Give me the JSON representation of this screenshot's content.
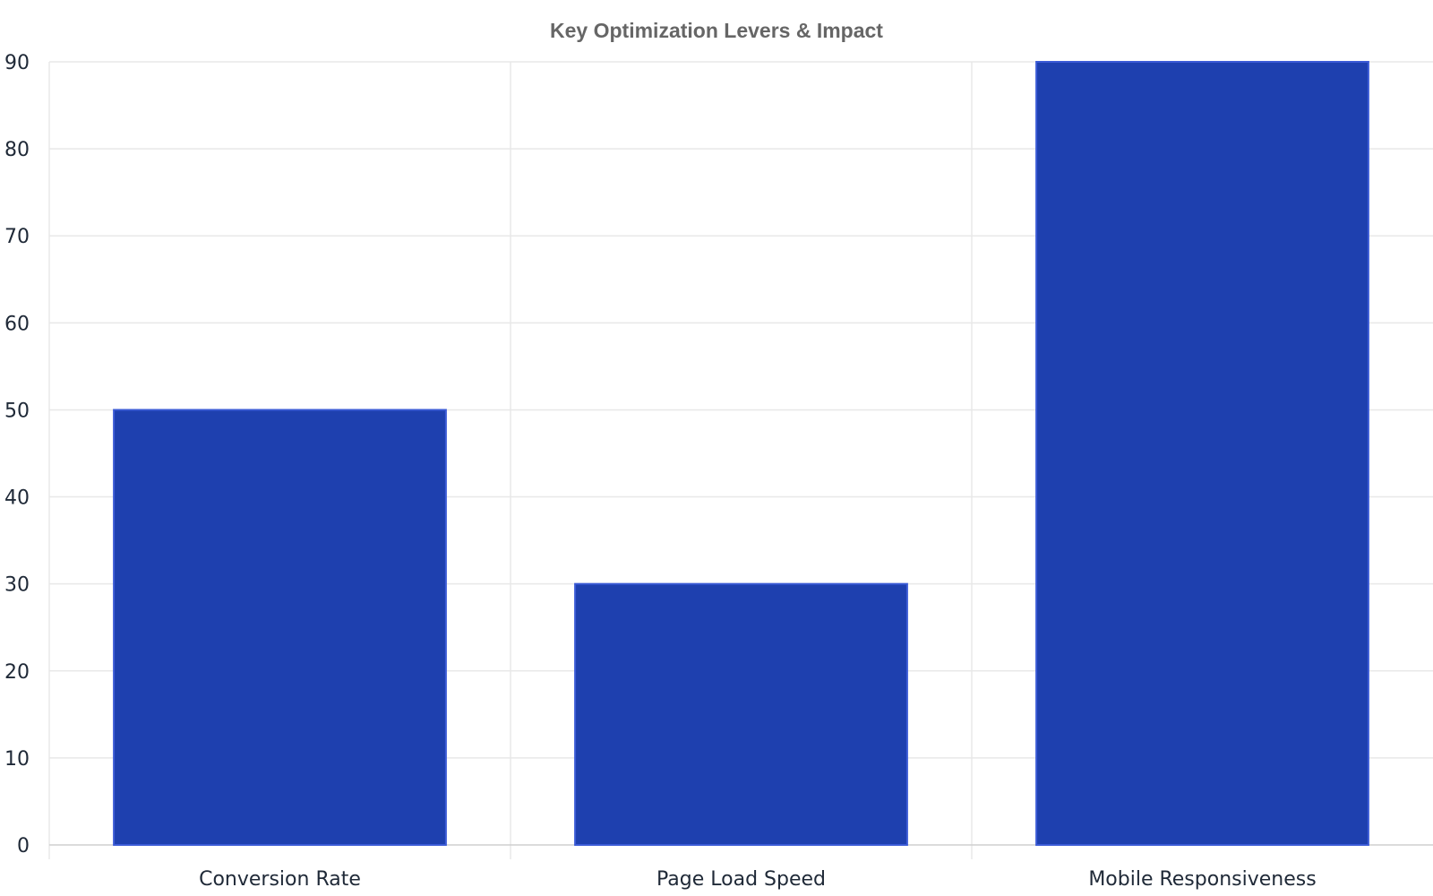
{
  "chart_data": {
    "type": "bar",
    "title": "Key Optimization Levers & Impact",
    "xlabel": "",
    "ylabel": "",
    "categories": [
      "Conversion Rate",
      "Page Load Speed",
      "Mobile Responsiveness"
    ],
    "values": [
      50,
      30,
      90
    ],
    "ylim": [
      0,
      90
    ],
    "yticks": [
      0,
      10,
      20,
      30,
      40,
      50,
      60,
      70,
      80,
      90
    ],
    "grid": true,
    "legend": "none",
    "colors": {
      "bar_fill": "#1e40af",
      "bar_edge": "#3b5bd6"
    }
  }
}
